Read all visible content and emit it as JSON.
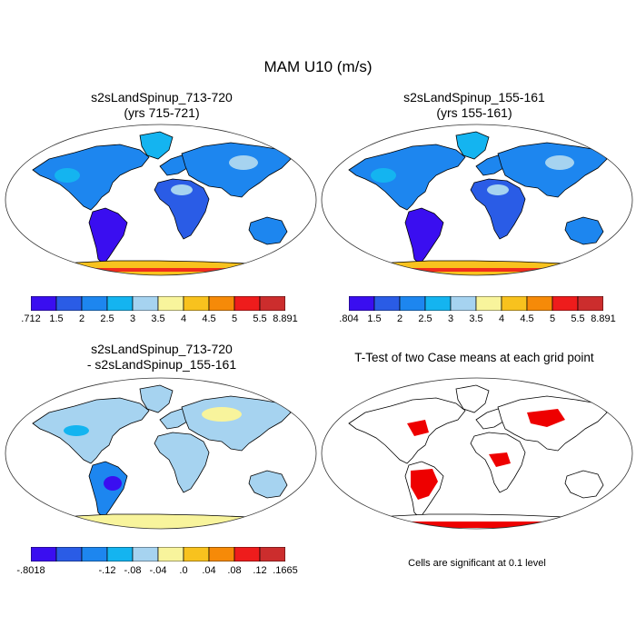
{
  "title": "MAM U10 (m/s)",
  "panels": [
    {
      "title_line1": "s2sLandSpinup_713-720",
      "title_line2": "(yrs 715-721)",
      "colorbar_labels": [
        ".712",
        "1.5",
        "2",
        "2.5",
        "3",
        "3.5",
        "4",
        "4.5",
        "5",
        "5.5",
        "8.891"
      ]
    },
    {
      "title_line1": "s2sLandSpinup_155-161",
      "title_line2": "(yrs 155-161)",
      "colorbar_labels": [
        ".804",
        "1.5",
        "2",
        "2.5",
        "3",
        "3.5",
        "4",
        "4.5",
        "5",
        "5.5",
        "8.891"
      ]
    },
    {
      "title_line1": "s2sLandSpinup_713-720",
      "title_line2": "- s2sLandSpinup_155-161",
      "colorbar_labels": [
        "-.8018",
        "-.12",
        "-.08",
        "-.04",
        ".0",
        ".04",
        ".08",
        ".12",
        ".1665"
      ]
    },
    {
      "title_line1": "T-Test of two Case means at each grid point",
      "note": "Cells are significant at 0.1 level"
    }
  ],
  "colors": {
    "wind_scale": [
      "#3a0ef0",
      "#2a5ce6",
      "#1d86ef",
      "#14b4f0",
      "#a6d3f0",
      "#f8f49c",
      "#f8c21e",
      "#f68a08",
      "#ee1c1c",
      "#cc2d2d"
    ],
    "diff_scale": [
      "#3a0ef0",
      "#2a5ce6",
      "#1d86ef",
      "#14b4f0",
      "#a6d3f0",
      "#f8f49c",
      "#f8c21e",
      "#f68a08",
      "#ee1c1c",
      "#cc2d2d"
    ],
    "significant": "#ee0000",
    "coast": "#000000"
  }
}
